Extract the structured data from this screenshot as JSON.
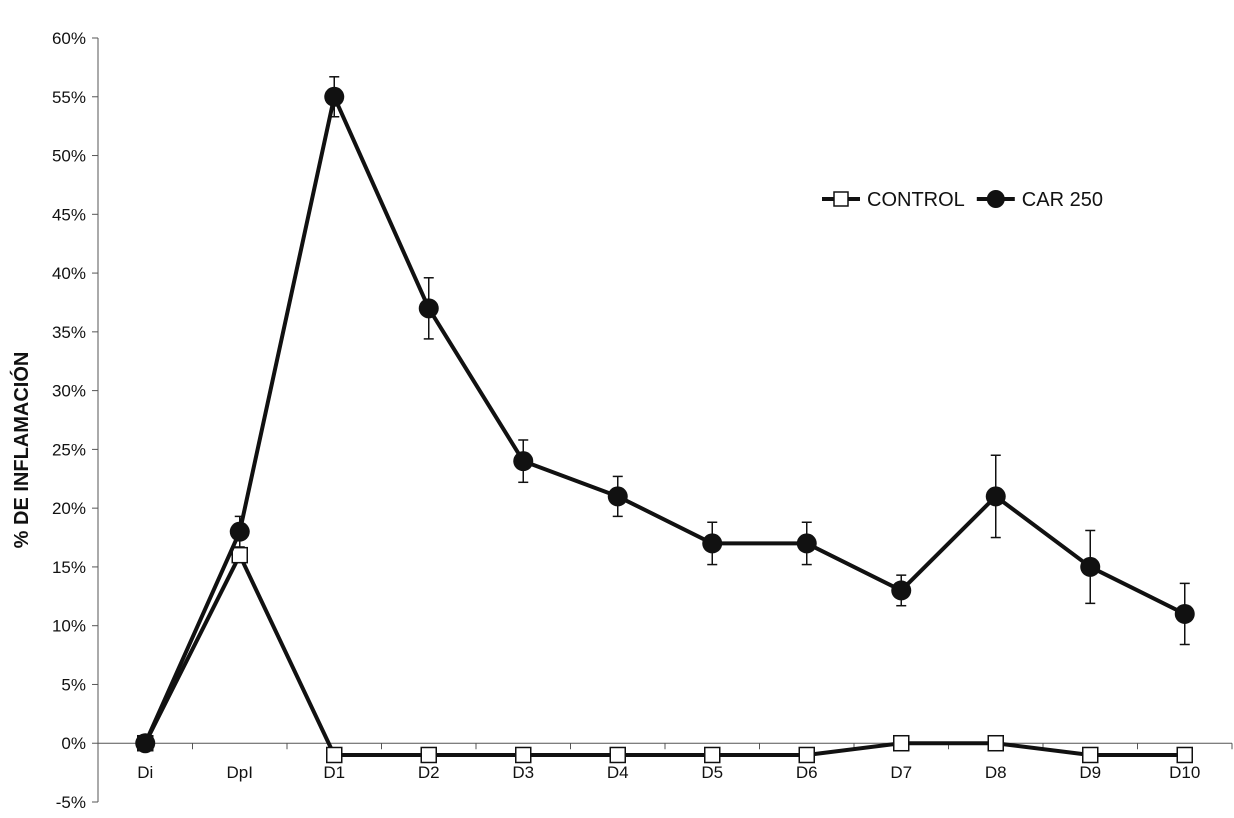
{
  "chart_data": {
    "type": "line",
    "title": "",
    "xlabel": "",
    "ylabel": "% DE INFLAMACIÓN",
    "categories": [
      "Di",
      "DpI",
      "D1",
      "D2",
      "D3",
      "D4",
      "D5",
      "D6",
      "D7",
      "D8",
      "D9",
      "D10"
    ],
    "ylim": [
      -5,
      60
    ],
    "yticks": [
      -5,
      0,
      5,
      10,
      15,
      20,
      25,
      30,
      35,
      40,
      45,
      50,
      55,
      60
    ],
    "ytick_suffix": "%",
    "grid": false,
    "legend_position": "top-right",
    "series": [
      {
        "name": "CONTROL",
        "marker": "open-square",
        "color": "#111111",
        "values": [
          0,
          16,
          -1,
          -1,
          -1,
          -1,
          -1,
          -1,
          0,
          0,
          -1,
          -1
        ]
      },
      {
        "name": "CAR 250",
        "marker": "filled-circle",
        "color": "#111111",
        "values": [
          0,
          18,
          55,
          37,
          24,
          21,
          17,
          17,
          13,
          21,
          15,
          11
        ],
        "error": [
          0,
          1.3,
          1.7,
          2.6,
          1.8,
          1.7,
          1.8,
          1.8,
          1.3,
          3.5,
          3.1,
          2.6
        ]
      }
    ]
  }
}
